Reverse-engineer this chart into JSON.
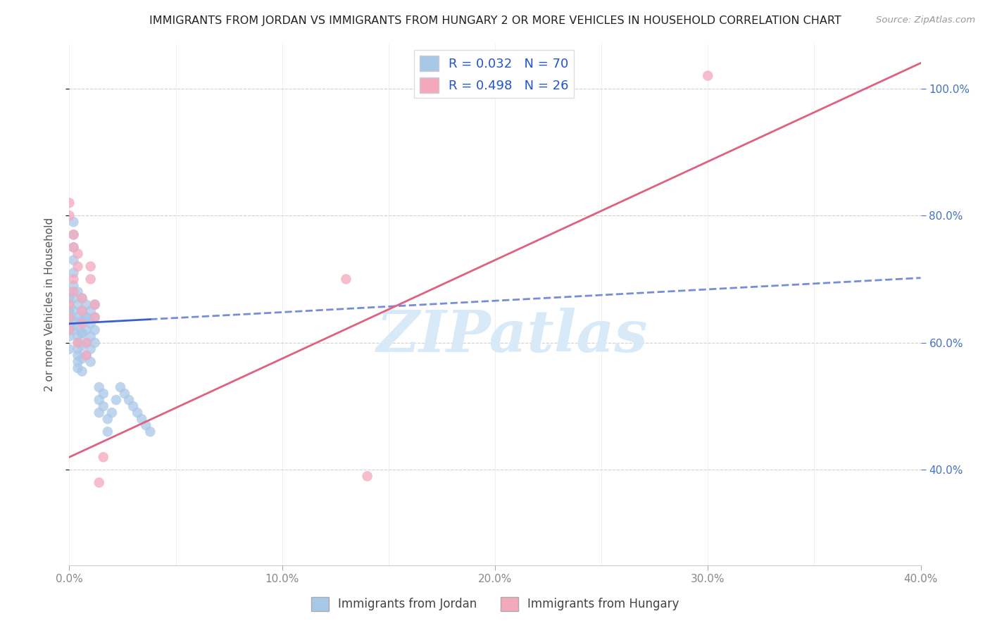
{
  "title": "IMMIGRANTS FROM JORDAN VS IMMIGRANTS FROM HUNGARY 2 OR MORE VEHICLES IN HOUSEHOLD CORRELATION CHART",
  "source": "Source: ZipAtlas.com",
  "ylabel": "2 or more Vehicles in Household",
  "xlim": [
    0.0,
    0.4
  ],
  "ylim": [
    0.25,
    1.07
  ],
  "jordan_R": 0.032,
  "jordan_N": 70,
  "hungary_R": 0.498,
  "hungary_N": 26,
  "jordan_color": "#a8c8e8",
  "hungary_color": "#f4a8bc",
  "jordan_line_color": "#3a5fcd",
  "hungary_line_color": "#e06080",
  "legend_jordan": "Immigrants from Jordan",
  "legend_hungary": "Immigrants from Hungary",
  "background_color": "#ffffff",
  "grid_color": "#cccccc",
  "watermark_text": "ZIPatlas",
  "watermark_color": "#d8eaf8",
  "jordan_x": [
    0.0,
    0.0,
    0.0,
    0.0,
    0.0,
    0.0,
    0.0,
    0.0,
    0.0,
    0.0,
    0.002,
    0.002,
    0.002,
    0.002,
    0.002,
    0.002,
    0.002,
    0.002,
    0.002,
    0.002,
    0.004,
    0.004,
    0.004,
    0.004,
    0.004,
    0.004,
    0.004,
    0.004,
    0.004,
    0.004,
    0.006,
    0.006,
    0.006,
    0.006,
    0.006,
    0.006,
    0.006,
    0.006,
    0.008,
    0.008,
    0.008,
    0.008,
    0.008,
    0.008,
    0.01,
    0.01,
    0.01,
    0.01,
    0.01,
    0.012,
    0.012,
    0.012,
    0.012,
    0.014,
    0.014,
    0.014,
    0.016,
    0.016,
    0.018,
    0.018,
    0.02,
    0.022,
    0.024,
    0.026,
    0.028,
    0.03,
    0.032,
    0.034,
    0.036,
    0.038
  ],
  "jordan_y": [
    0.64,
    0.65,
    0.62,
    0.66,
    0.63,
    0.61,
    0.67,
    0.68,
    0.59,
    0.645,
    0.65,
    0.67,
    0.69,
    0.71,
    0.73,
    0.75,
    0.77,
    0.79,
    0.62,
    0.635,
    0.64,
    0.66,
    0.68,
    0.6,
    0.58,
    0.56,
    0.57,
    0.59,
    0.61,
    0.625,
    0.65,
    0.67,
    0.635,
    0.615,
    0.595,
    0.575,
    0.555,
    0.615,
    0.66,
    0.64,
    0.62,
    0.6,
    0.58,
    0.64,
    0.63,
    0.65,
    0.61,
    0.59,
    0.57,
    0.64,
    0.66,
    0.62,
    0.6,
    0.53,
    0.51,
    0.49,
    0.52,
    0.5,
    0.48,
    0.46,
    0.49,
    0.51,
    0.53,
    0.52,
    0.51,
    0.5,
    0.49,
    0.48,
    0.47,
    0.46
  ],
  "hungary_x": [
    0.0,
    0.0,
    0.0,
    0.0,
    0.0,
    0.002,
    0.002,
    0.002,
    0.002,
    0.004,
    0.004,
    0.004,
    0.006,
    0.006,
    0.006,
    0.008,
    0.008,
    0.01,
    0.01,
    0.012,
    0.012,
    0.014,
    0.016,
    0.13,
    0.14,
    0.3
  ],
  "hungary_y": [
    0.62,
    0.64,
    0.66,
    0.8,
    0.82,
    0.68,
    0.7,
    0.75,
    0.77,
    0.72,
    0.74,
    0.6,
    0.63,
    0.65,
    0.67,
    0.58,
    0.6,
    0.7,
    0.72,
    0.64,
    0.66,
    0.38,
    0.42,
    0.7,
    0.39,
    1.02
  ],
  "xgrid_lines": [
    0.0,
    0.05,
    0.1,
    0.15,
    0.2,
    0.25,
    0.3,
    0.35,
    0.4
  ],
  "ygrid_lines": [
    0.4,
    0.6,
    0.8,
    1.0
  ],
  "xtick_vals": [
    0.0,
    0.1,
    0.2,
    0.3,
    0.4
  ],
  "xtick_labels": [
    "0.0%",
    "10.0%",
    "20.0%",
    "30.0%",
    "40.0%"
  ],
  "ytick_vals": [
    0.4,
    0.6,
    0.8,
    1.0
  ],
  "ytick_labels": [
    "40.0%",
    "60.0%",
    "80.0%",
    "100.0%"
  ]
}
